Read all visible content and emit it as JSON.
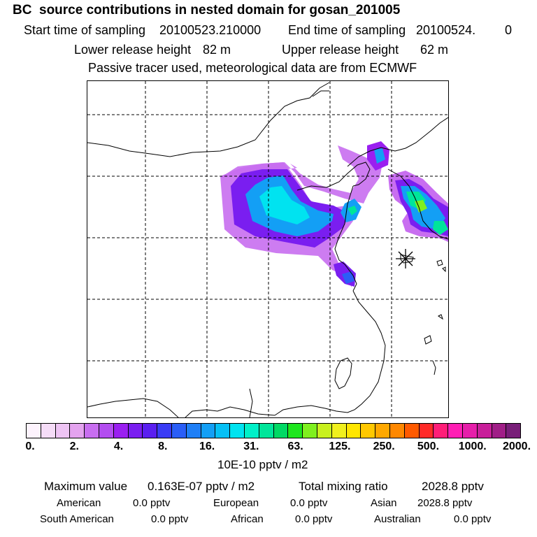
{
  "header": {
    "title": "BC  source contributions in nested domain for gosan_201005",
    "start_label": "Start time of sampling",
    "start_value": "20100523.210000",
    "end_label": "End time of sampling",
    "end_value": "20100524.",
    "end_extra": "0",
    "lower_label": "Lower release height",
    "lower_value": "82 m",
    "upper_label": "Upper release height",
    "upper_value": "62 m",
    "note": "Passive tracer used, meteorological data are from ECMWF"
  },
  "colorbar": {
    "colors": [
      "#fdf3fd",
      "#f5dcf7",
      "#eec4f4",
      "#e4a3ef",
      "#c86ef0",
      "#b34df0",
      "#9a1ff0",
      "#7a1ef0",
      "#5a1ff0",
      "#3a3cf5",
      "#2a5ef7",
      "#1f7ff6",
      "#139ff5",
      "#06c0f5",
      "#00e3f0",
      "#00f0c8",
      "#00e59a",
      "#00d964",
      "#1ee61e",
      "#7ff01e",
      "#c8f01e",
      "#f0f01e",
      "#ffe600",
      "#ffc800",
      "#ffa800",
      "#ff8800",
      "#ff5a00",
      "#ff2a28",
      "#ff1e78",
      "#ff1eb4",
      "#e61eaa",
      "#c81e9a",
      "#a01e87",
      "#781e78"
    ],
    "ticks": [
      "0.",
      "2.",
      "4.",
      "8.",
      "16.",
      "31.",
      "63.",
      "125.",
      "250.",
      "500.",
      "1000.",
      "2000."
    ],
    "units": "10E-10 pptv / m2"
  },
  "summary": {
    "max_label": "Maximum value",
    "max_value": "0.163E-07 pptv / m2",
    "total_label": "Total mixing ratio",
    "total_value": "2028.8 pptv",
    "regions": [
      {
        "name": "American",
        "value": "0.0 pptv"
      },
      {
        "name": "European",
        "value": "0.0 pptv"
      },
      {
        "name": "Asian",
        "value": "2028.8 pptv"
      },
      {
        "name": "South American",
        "value": "0.0 pptv"
      },
      {
        "name": "African",
        "value": "0.0 pptv"
      },
      {
        "name": "Australian",
        "value": "0.0 pptv"
      }
    ]
  }
}
